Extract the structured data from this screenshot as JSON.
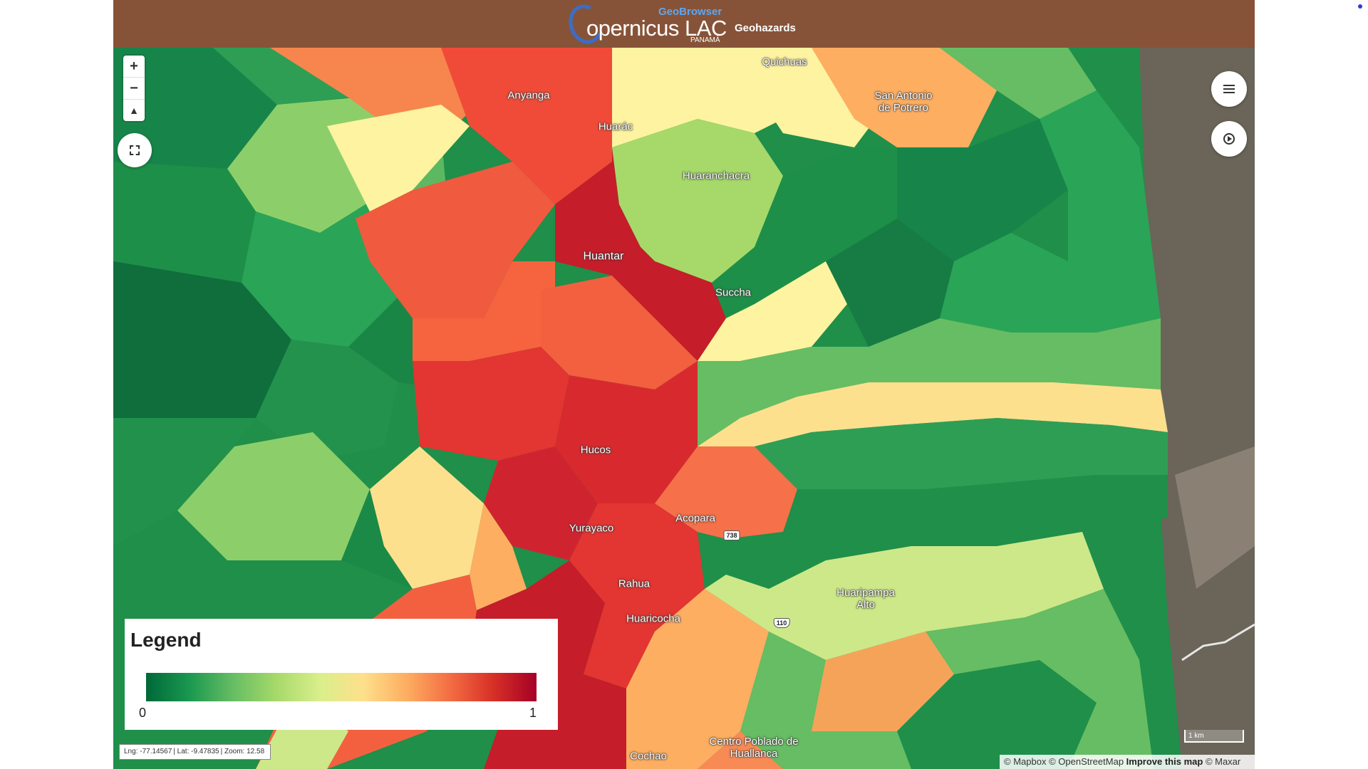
{
  "header": {
    "logo_geo": "GeoBrowser",
    "logo_main": "opernicus LAC",
    "logo_sub": "PANAMÁ",
    "title": "Geohazards"
  },
  "controls": {
    "zoom_in": "+",
    "zoom_out": "−",
    "compass": "▲"
  },
  "places": [
    {
      "name": "Quichuas"
    },
    {
      "name": "Anyanga"
    },
    {
      "name": "Huarác"
    },
    {
      "name": "San Antonio de Potrero"
    },
    {
      "name": "Huaranchacra"
    },
    {
      "name": "Huantar"
    },
    {
      "name": "Succha"
    },
    {
      "name": "Hucos"
    },
    {
      "name": "Acopara"
    },
    {
      "name": "Yurayaco"
    },
    {
      "name": "Rahua"
    },
    {
      "name": "Huaripampa Alto"
    },
    {
      "name": "Huaricocha"
    },
    {
      "name": "Centro Poblado de Huallanca"
    },
    {
      "name": "Cochao"
    }
  ],
  "road_shields": [
    {
      "label": "738"
    },
    {
      "label": "110"
    }
  ],
  "legend": {
    "title": "Legend",
    "min": "0",
    "max": "1",
    "colors": [
      "#006837",
      "#a50026"
    ]
  },
  "status": {
    "lng": "Lng: -77.14567",
    "lat": "Lat: -9.47835",
    "zoom": "Zoom: 12.58"
  },
  "scale_label": "1 km",
  "attribution": {
    "mapbox": "© Mapbox",
    "osm": "© OpenStreetMap",
    "improve": "Improve this map",
    "maxar": "© Maxar"
  }
}
